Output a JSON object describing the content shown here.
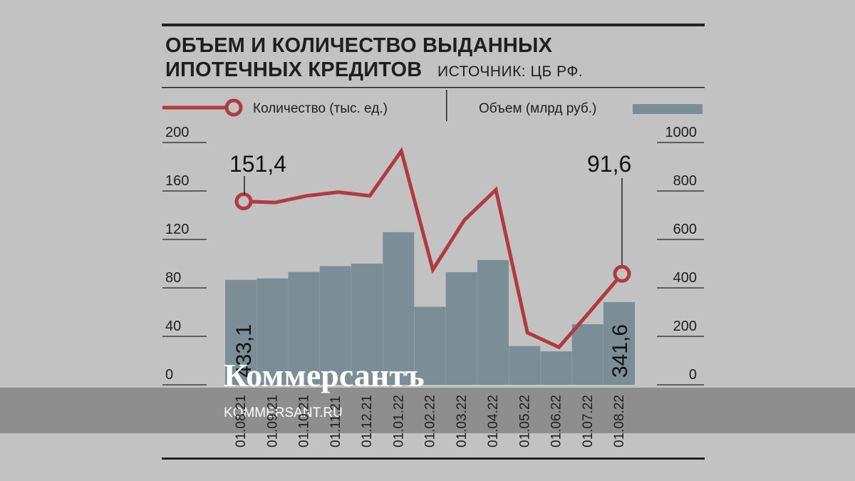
{
  "chart_data": {
    "type": "bar+line",
    "title_line1": "ОБЪЕМ И КОЛИЧЕСТВО ВЫДАННЫХ",
    "title_line2": "ИПОТЕЧНЫХ КРЕДИТОВ",
    "source": "ИСТОЧНИК: ЦБ РФ.",
    "legend": {
      "line_label": "Количество (тыс. ед.)",
      "bar_label": "Объем (млрд руб.)",
      "line_color": "#b03a40",
      "bar_color": "#7b8d96"
    },
    "categories": [
      "01.08.21",
      "01.09.21",
      "01.10.21",
      "01.11.21",
      "01.12.21",
      "01.01.22",
      "01.02.22",
      "01.03.22",
      "01.04.22",
      "01.05.22",
      "01.06.22",
      "01.07.22",
      "01.08.22"
    ],
    "series": [
      {
        "name": "Объем (млрд руб.)",
        "kind": "bar",
        "axis": "right",
        "values": [
          433.1,
          439,
          466,
          490,
          500,
          630,
          322,
          465,
          515,
          160,
          138,
          250,
          341.6
        ]
      },
      {
        "name": "Количество (тыс. ед.)",
        "kind": "line",
        "axis": "left",
        "values": [
          151.4,
          150.5,
          156,
          159,
          156,
          193,
          95,
          136,
          161,
          43,
          31,
          61,
          91.6
        ]
      }
    ],
    "y_left": {
      "ticks": [
        "200",
        "160",
        "120",
        "80",
        "40",
        "0"
      ],
      "range": [
        0,
        200
      ]
    },
    "y_right": {
      "ticks": [
        "1000",
        "800",
        "600",
        "400",
        "200",
        "0"
      ],
      "range": [
        0,
        1000
      ]
    },
    "annotations": {
      "line_first": "151,4",
      "line_last": "91,6",
      "bar_first": "433,1",
      "bar_last": "341,6"
    }
  },
  "watermark": {
    "brand": "Коммерсантъ",
    "site": "KOMMERSANT.RU"
  }
}
